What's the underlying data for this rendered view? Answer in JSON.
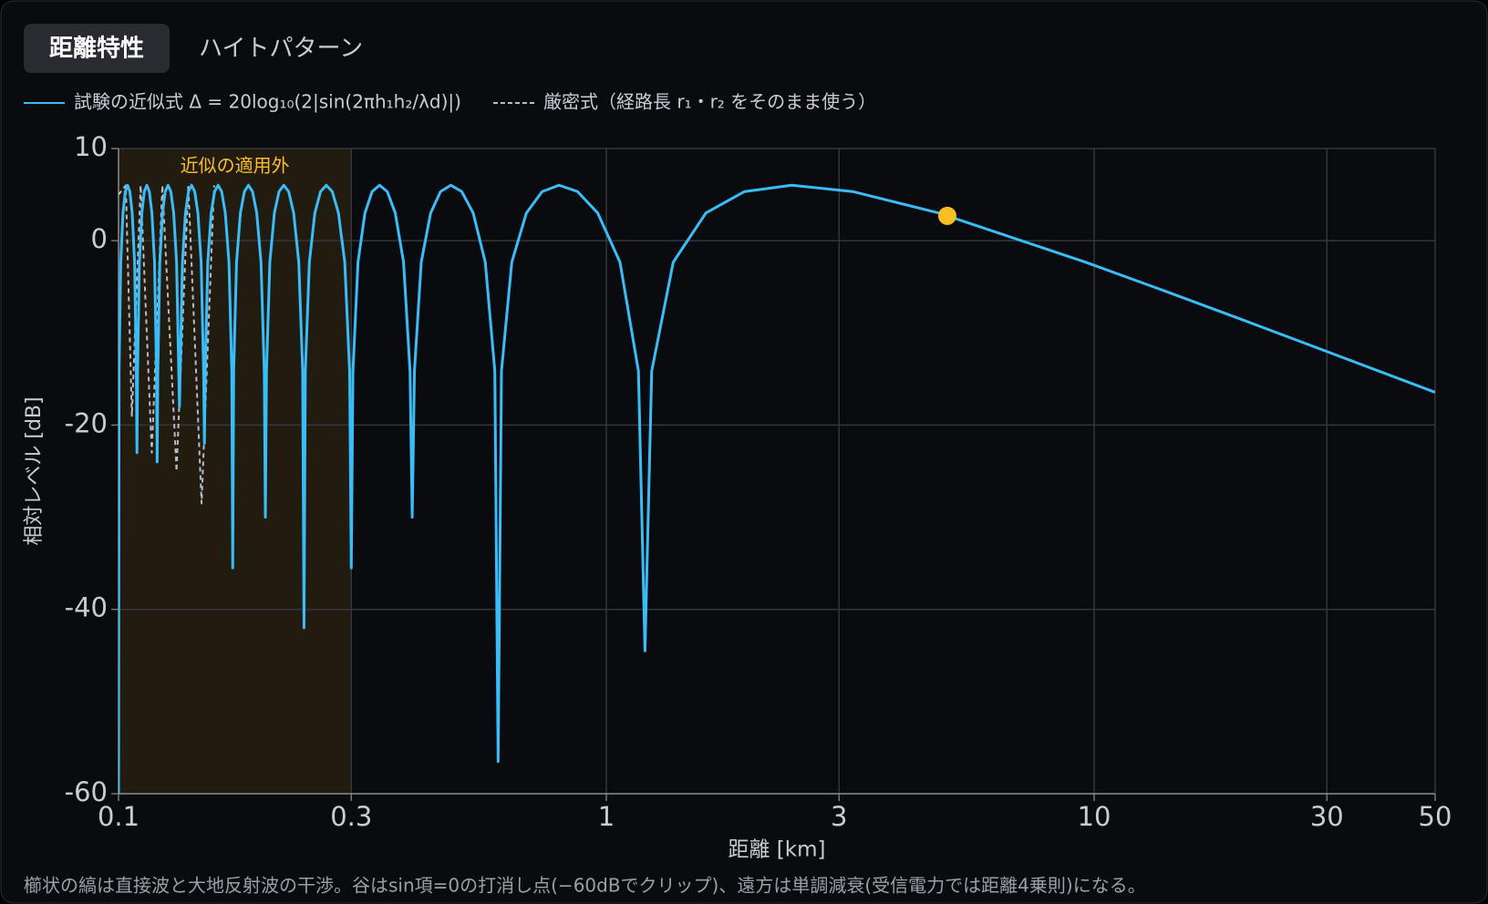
{
  "tabs": [
    "距離特性",
    "ハイトパターン"
  ],
  "active_tab": 0,
  "chart_data": {
    "type": "line",
    "x_label": "距離 [km]",
    "y_label": "相対レベル [dB]",
    "xscale": "log",
    "xlim": [
      0.1,
      50
    ],
    "xticks": [
      0.1,
      0.3,
      1,
      3,
      10,
      30,
      50
    ],
    "ylim": [
      -60,
      10
    ],
    "yticks": [
      -60,
      -40,
      -20,
      0,
      10
    ],
    "grid": true,
    "shaded_region": {
      "x": [
        0.1,
        0.3
      ],
      "label": "近似の適用外",
      "color": "#fbbf24"
    },
    "marker": {
      "x": 5,
      "y": 2.7,
      "color": "#fbbf24"
    },
    "series": [
      {
        "name": "試験の近似式 Δ = 20log₁₀(2|sin(2πh₁h₂/λd)|)",
        "color": "#38bdf8",
        "style": "solid",
        "x": [
          0.1,
          0.10026,
          0.10105,
          0.10213,
          0.10323,
          0.10435,
          0.10549,
          0.10667,
          0.10787,
          0.10878,
          0.10909,
          0.1094,
          0.11034,
          0.11163,
          0.11294,
          0.11429,
          0.11566,
          0.11707,
          0.11852,
          0.11963,
          0.12,
          0.12038,
          0.12152,
          0.12308,
          0.12468,
          0.12632,
          0.128,
          0.12973,
          0.13151,
          0.13287,
          0.13333,
          0.1338,
          0.13521,
          0.13714,
          0.13913,
          0.14118,
          0.14328,
          0.14545,
          0.14769,
          0.14942,
          0.15,
          0.15059,
          0.15238,
          0.15484,
          0.15738,
          0.16,
          0.16271,
          0.16552,
          0.16842,
          0.17067,
          0.17143,
          0.1722,
          0.17455,
          0.17778,
          0.18113,
          0.18462,
          0.18824,
          0.192,
          0.19592,
          0.19896,
          0.2,
          0.20105,
          0.20426,
          0.2087,
          0.21333,
          0.21818,
          0.22326,
          0.22857,
          0.23415,
          0.23851,
          0.24,
          0.24151,
          0.24615,
          0.25263,
          0.25946,
          0.26667,
          0.27429,
          0.28235,
          0.29091,
          0.29767,
          0.3,
          0.30236,
          0.30968,
          0.32,
          0.33103,
          0.34286,
          0.35556,
          0.36923,
          0.384,
          0.39588,
          0.4,
          0.40421,
          0.41739,
          0.43636,
          0.45714,
          0.48,
          0.50526,
          0.53333,
          0.56471,
          0.59077,
          0.6,
          0.60952,
          0.64,
          0.68571,
          0.73846,
          0.8,
          0.87273,
          0.96,
          1.06667,
          1.16364,
          1.2,
          1.23871,
          1.37143,
          1.6,
          1.92,
          2.4,
          3.2,
          4.8,
          9.6,
          14,
          20,
          30,
          50
        ],
        "values": [
          -60,
          -14.15,
          -2.33,
          3.01,
          5.33,
          6.02,
          5.33,
          3.01,
          -2.33,
          -14.15,
          -23,
          -14.15,
          -2.33,
          3.01,
          5.33,
          6.02,
          5.33,
          3.01,
          -2.33,
          -14.15,
          -24,
          -14.15,
          -2.33,
          3.01,
          5.33,
          6.02,
          5.33,
          3.01,
          -2.33,
          -14.15,
          -18,
          -14.15,
          -2.33,
          3.01,
          5.33,
          6.02,
          5.33,
          3.01,
          -2.33,
          -14.15,
          -22,
          -14.15,
          -2.33,
          3.01,
          5.33,
          6.02,
          5.33,
          3.01,
          -2.33,
          -14.15,
          -35.5,
          -14.15,
          -2.33,
          3.01,
          5.33,
          6.02,
          5.33,
          3.01,
          -2.33,
          -14.15,
          -30,
          -14.15,
          -2.33,
          3.01,
          5.33,
          6.02,
          5.33,
          3.01,
          -2.33,
          -14.15,
          -42,
          -14.15,
          -2.33,
          3.01,
          5.33,
          6.02,
          5.33,
          3.01,
          -2.33,
          -14.15,
          -35.5,
          -14.15,
          -2.33,
          3.01,
          5.33,
          6.02,
          5.33,
          3.01,
          -2.33,
          -14.15,
          -30,
          -14.15,
          -2.33,
          3.01,
          5.33,
          6.02,
          5.33,
          3.01,
          -2.33,
          -14.15,
          -56.5,
          -14.15,
          -2.33,
          3.01,
          5.33,
          6.02,
          5.33,
          3.01,
          -2.33,
          -14.15,
          -44.5,
          -14.15,
          -2.33,
          3.01,
          5.33,
          6.02,
          5.33,
          3.01,
          -2.33,
          -5.48,
          -8.52,
          -12.02,
          -16.44
        ]
      },
      {
        "name": "厳密式（経路長 r₁・r₂ をそのまま使う）",
        "color": "#b8bcc6",
        "style": "dashed",
        "x": [
          0.1,
          0.1035,
          0.1065,
          0.111,
          0.117,
          0.123,
          0.1315,
          0.139,
          0.148,
          0.157
        ],
        "values": [
          5,
          6,
          -19,
          6,
          -23,
          6,
          -25,
          6,
          -28.5,
          6
        ]
      }
    ]
  },
  "footnote": "櫛状の縞は直接波と大地反射波の干渉。谷はsin項=0の打消し点(−60dBでクリップ)、遠方は単調減衰(受信電力では距離4乗則)になる。"
}
